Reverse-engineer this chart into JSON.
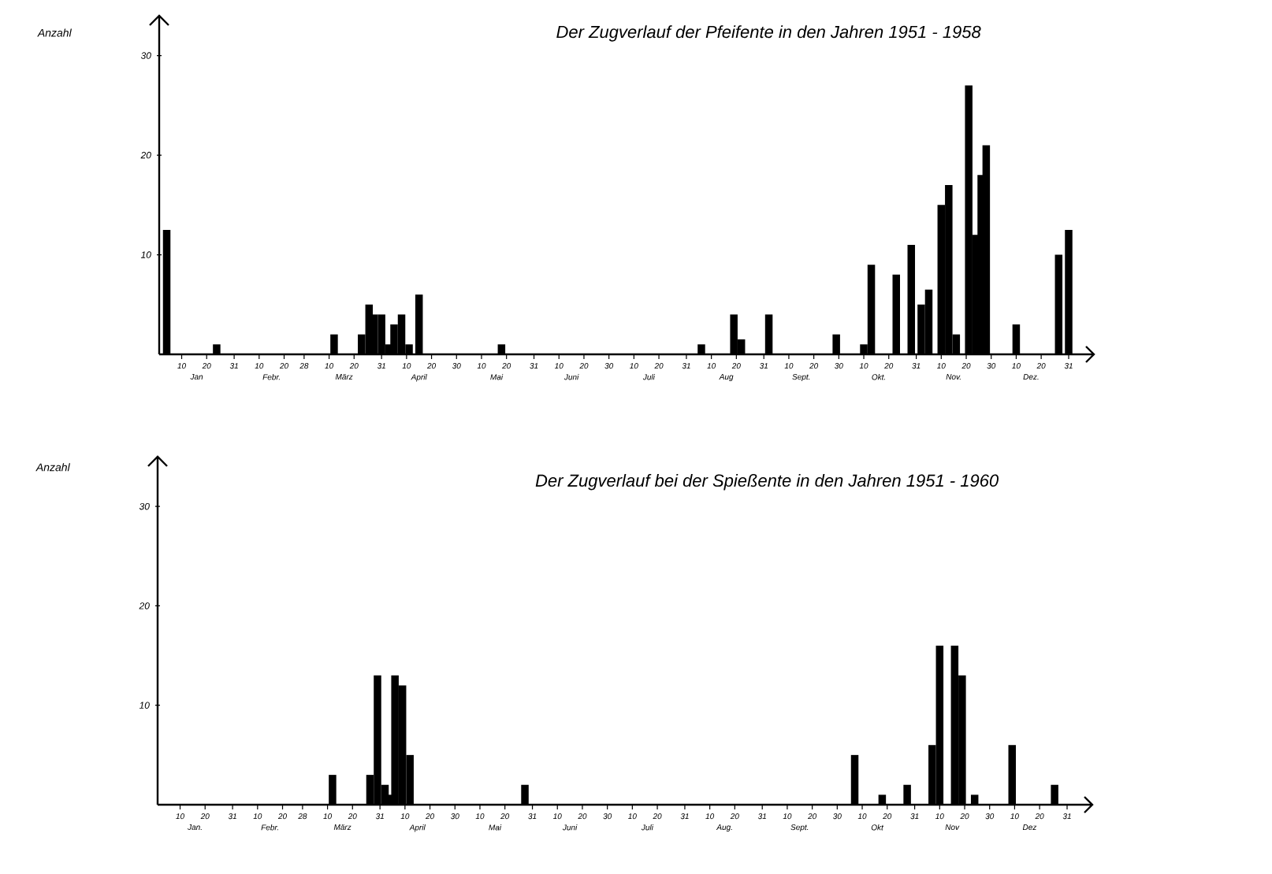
{
  "chart_data": [
    {
      "type": "bar",
      "title": "Der Zugverlauf der Pfeifente in den Jahren 1951 - 1958",
      "ylabel": "Anzahl",
      "color": "#000000",
      "x": [
        "--01-04",
        "--01-24",
        "--03-12",
        "--03-23",
        "--03-26",
        "--03-28",
        "--03-31",
        "--04-03",
        "--04-05",
        "--04-08",
        "--04-11",
        "--04-15",
        "--05-18",
        "--08-06",
        "--08-19",
        "--08-22",
        "--09-02",
        "--09-29",
        "--10-10",
        "--10-13",
        "--10-23",
        "--10-29",
        "--11-02",
        "--11-05",
        "--11-10",
        "--11-13",
        "--11-16",
        "--11-21",
        "--11-24",
        "--11-26",
        "--11-28",
        "--12-10",
        "--12-27",
        "--12-31"
      ],
      "values": [
        12.5,
        1,
        2,
        2,
        5,
        4,
        4,
        1,
        3,
        4,
        1,
        6,
        1,
        1,
        4,
        1.5,
        4,
        2,
        1,
        9,
        8,
        11,
        5,
        6.5,
        15,
        17,
        2,
        27,
        12,
        18,
        21,
        3,
        10,
        12.5
      ],
      "xlim": [
        "--01-01",
        "--12-31"
      ],
      "ylim": [
        0,
        34
      ],
      "xticks": [
        {
          "value": "--01-10",
          "label": "10"
        },
        {
          "value": "--01-20",
          "label": "20"
        },
        {
          "value": "--01-31",
          "label": "31"
        },
        {
          "value": "--02-10",
          "label": "10"
        },
        {
          "value": "--02-20",
          "label": "20"
        },
        {
          "value": "--02-28",
          "label": "28"
        },
        {
          "value": "--03-10",
          "label": "10"
        },
        {
          "value": "--03-20",
          "label": "20"
        },
        {
          "value": "--03-31",
          "label": "31"
        },
        {
          "value": "--04-10",
          "label": "10"
        },
        {
          "value": "--04-20",
          "label": "20"
        },
        {
          "value": "--04-30",
          "label": "30"
        },
        {
          "value": "--05-10",
          "label": "10"
        },
        {
          "value": "--05-20",
          "label": "20"
        },
        {
          "value": "--05-31",
          "label": "31"
        },
        {
          "value": "--06-10",
          "label": "10"
        },
        {
          "value": "--06-20",
          "label": "20"
        },
        {
          "value": "--06-30",
          "label": "30"
        },
        {
          "value": "--07-10",
          "label": "10"
        },
        {
          "value": "--07-20",
          "label": "20"
        },
        {
          "value": "--07-31",
          "label": "31"
        },
        {
          "value": "--08-10",
          "label": "10"
        },
        {
          "value": "--08-20",
          "label": "20"
        },
        {
          "value": "--08-31",
          "label": "31"
        },
        {
          "value": "--09-10",
          "label": "10"
        },
        {
          "value": "--09-20",
          "label": "20"
        },
        {
          "value": "--09-30",
          "label": "30"
        },
        {
          "value": "--10-10",
          "label": "10"
        },
        {
          "value": "--10-20",
          "label": "20"
        },
        {
          "value": "--10-31",
          "label": "31"
        },
        {
          "value": "--11-10",
          "label": "10"
        },
        {
          "value": "--11-20",
          "label": "20"
        },
        {
          "value": "--11-30",
          "label": "30"
        },
        {
          "value": "--12-10",
          "label": "10"
        },
        {
          "value": "--12-20",
          "label": "20"
        },
        {
          "value": "--12-31",
          "label": "31"
        }
      ],
      "yticks": [
        10,
        20,
        30
      ],
      "x2lim": [
        "--01-01",
        "--12-31"
      ],
      "x2ticks": [
        {
          "value": "--01-16",
          "label": "Jan"
        },
        {
          "value": "--02-15",
          "label": "Febr."
        },
        {
          "value": "--03-16",
          "label": "März"
        },
        {
          "value": "--04-15",
          "label": "April"
        },
        {
          "value": "--05-16",
          "label": "Mai"
        },
        {
          "value": "--06-15",
          "label": "Juni"
        },
        {
          "value": "--07-16",
          "label": "Juli"
        },
        {
          "value": "--08-16",
          "label": "Aug"
        },
        {
          "value": "--09-15",
          "label": "Sept."
        },
        {
          "value": "--10-16",
          "label": "Okt."
        },
        {
          "value": "--11-15",
          "label": "Nov."
        },
        {
          "value": "--12-16",
          "label": "Dez."
        }
      ]
    },
    {
      "type": "bar",
      "title": "Der Zugverlauf bei der Spießente in den Jahren 1951 - 1960",
      "ylabel": "Anzahl",
      "color": "#000000",
      "x": [
        "--03-12",
        "--03-27",
        "--03-30",
        "--04-02",
        "--04-04",
        "--04-06",
        "--04-09",
        "--04-12",
        "--05-28",
        "--10-07",
        "--10-18",
        "--10-28",
        "--11-07",
        "--11-10",
        "--11-16",
        "--11-19",
        "--11-24",
        "--12-09",
        "--12-26"
      ],
      "values": [
        3,
        3,
        13,
        2,
        1,
        13,
        12,
        5,
        2,
        5,
        1,
        2,
        6,
        16,
        16,
        13,
        1,
        6,
        2
      ],
      "xlim": [
        "--01-01",
        "--12-31"
      ],
      "ylim": [
        0,
        35
      ],
      "xticks": [
        {
          "value": "--01-10",
          "label": "10"
        },
        {
          "value": "--01-20",
          "label": "20"
        },
        {
          "value": "--01-31",
          "label": "31"
        },
        {
          "value": "--02-10",
          "label": "10"
        },
        {
          "value": "--02-20",
          "label": "20"
        },
        {
          "value": "--02-28",
          "label": "28"
        },
        {
          "value": "--03-10",
          "label": "10"
        },
        {
          "value": "--03-20",
          "label": "20"
        },
        {
          "value": "--03-31",
          "label": "31"
        },
        {
          "value": "--04-10",
          "label": "10"
        },
        {
          "value": "--04-20",
          "label": "20"
        },
        {
          "value": "--04-30",
          "label": "30"
        },
        {
          "value": "--05-10",
          "label": "10"
        },
        {
          "value": "--05-20",
          "label": "20"
        },
        {
          "value": "--05-31",
          "label": "31"
        },
        {
          "value": "--06-10",
          "label": "10"
        },
        {
          "value": "--06-20",
          "label": "20"
        },
        {
          "value": "--06-30",
          "label": "30"
        },
        {
          "value": "--07-10",
          "label": "10"
        },
        {
          "value": "--07-20",
          "label": "20"
        },
        {
          "value": "--07-31",
          "label": "31"
        },
        {
          "value": "--08-10",
          "label": "10"
        },
        {
          "value": "--08-20",
          "label": "20"
        },
        {
          "value": "--08-31",
          "label": "31"
        },
        {
          "value": "--09-10",
          "label": "10"
        },
        {
          "value": "--09-20",
          "label": "20"
        },
        {
          "value": "--09-30",
          "label": "30"
        },
        {
          "value": "--10-10",
          "label": "10"
        },
        {
          "value": "--10-20",
          "label": "20"
        },
        {
          "value": "--10-31",
          "label": "31"
        },
        {
          "value": "--11-10",
          "label": "10"
        },
        {
          "value": "--11-20",
          "label": "20"
        },
        {
          "value": "--11-30",
          "label": "30"
        },
        {
          "value": "--12-10",
          "label": "10"
        },
        {
          "value": "--12-20",
          "label": "20"
        },
        {
          "value": "--12-31",
          "label": "31"
        }
      ],
      "yticks": [
        10,
        20,
        30
      ],
      "x2lim": [
        "--01-01",
        "--12-31"
      ],
      "x2ticks": [
        {
          "value": "--01-16",
          "label": "Jan."
        },
        {
          "value": "--02-15",
          "label": "Febr."
        },
        {
          "value": "--03-16",
          "label": "März"
        },
        {
          "value": "--04-15",
          "label": "April"
        },
        {
          "value": "--05-16",
          "label": "Mai"
        },
        {
          "value": "--06-15",
          "label": "Juni"
        },
        {
          "value": "--07-16",
          "label": "Juli"
        },
        {
          "value": "--08-16",
          "label": "Aug."
        },
        {
          "value": "--09-15",
          "label": "Sept."
        },
        {
          "value": "--10-16",
          "label": "Okt"
        },
        {
          "value": "--11-15",
          "label": "Nov"
        },
        {
          "value": "--12-16",
          "label": "Dez"
        }
      ]
    }
  ]
}
